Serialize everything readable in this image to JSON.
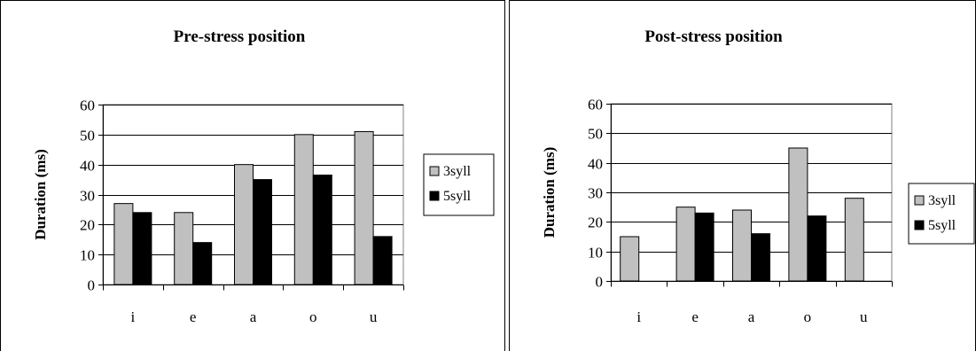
{
  "chart_data": [
    {
      "type": "bar",
      "title": "Pre-stress position",
      "ylabel": "Duration (ms)",
      "xlabel": "",
      "categories": [
        "i",
        "e",
        "a",
        "o",
        "u"
      ],
      "ylim": [
        0,
        60
      ],
      "yticks": [
        0,
        10,
        20,
        30,
        40,
        50,
        60
      ],
      "grid": true,
      "legend": "right",
      "series": [
        {
          "name": "3syll",
          "color": "#c0c0c0",
          "values": [
            27,
            24,
            40,
            50,
            51
          ]
        },
        {
          "name": "5syll",
          "color": "#000000",
          "values": [
            24,
            14,
            35,
            36.5,
            16
          ]
        }
      ]
    },
    {
      "type": "bar",
      "title": "Post-stress position",
      "ylabel": "Duration (ms)",
      "xlabel": "",
      "categories": [
        "i",
        "e",
        "a",
        "o",
        "u"
      ],
      "ylim": [
        0,
        60
      ],
      "yticks": [
        0,
        10,
        20,
        30,
        40,
        50,
        60
      ],
      "grid": true,
      "legend": "right",
      "series": [
        {
          "name": "3syll",
          "color": "#c0c0c0",
          "values": [
            15,
            25,
            24,
            45,
            28
          ]
        },
        {
          "name": "5syll",
          "color": "#000000",
          "values": [
            null,
            23,
            16,
            22,
            null
          ]
        }
      ]
    }
  ]
}
